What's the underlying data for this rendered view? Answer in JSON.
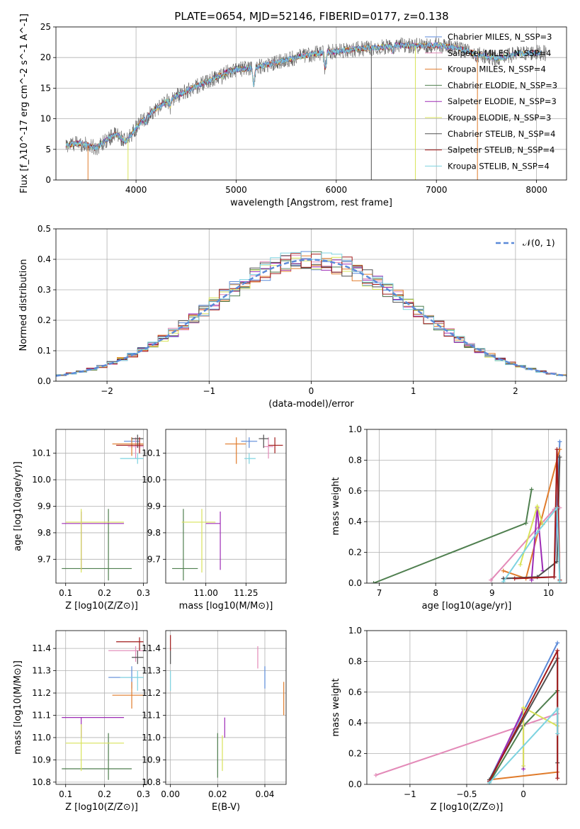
{
  "figure_title": "PLATE=0654, MJD=52146, FIBERID=0177, z=0.138",
  "colors": {
    "chabrier_miles": "#5b8ad8",
    "salpeter_miles": "#e38ab8",
    "kroupa_miles": "#e07b2b",
    "chabrier_elodie": "#4f7f4f",
    "salpeter_elodie": "#9d2bb5",
    "kroupa_elodie": "#d8e35a",
    "chabrier_stelib": "#505050",
    "salpeter_stelib": "#a11a1a",
    "kroupa_stelib": "#7dd3e0"
  },
  "chart_data": [
    {
      "id": "spectrum",
      "type": "line",
      "xlabel": "wavelength [Angstrom, rest frame]",
      "ylabel": "Flux [f_λ10^-17 erg cm^-2 s^-1 A^-1]",
      "xlim": [
        3200,
        8300
      ],
      "ylim": [
        0,
        25
      ],
      "xticks": [
        4000,
        5000,
        6000,
        7000,
        8000
      ],
      "yticks": [
        0,
        5,
        10,
        15,
        20,
        25
      ],
      "legend_position": "right",
      "legend": [
        {
          "label": "Chabrier MILES, N_SSP=3",
          "color_key": "chabrier_miles"
        },
        {
          "label": "Salpeter MILES, N_SSP=4",
          "color_key": "salpeter_miles"
        },
        {
          "label": "Kroupa MILES, N_SSP=4",
          "color_key": "kroupa_miles"
        },
        {
          "label": "Chabrier ELODIE, N_SSP=3",
          "color_key": "chabrier_elodie"
        },
        {
          "label": "Salpeter ELODIE, N_SSP=3",
          "color_key": "salpeter_elodie"
        },
        {
          "label": "Kroupa ELODIE, N_SSP=3",
          "color_key": "kroupa_elodie"
        },
        {
          "label": "Chabrier STELIB, N_SSP=4",
          "color_key": "chabrier_stelib"
        },
        {
          "label": "Salpeter STELIB, N_SSP=4",
          "color_key": "salpeter_stelib"
        },
        {
          "label": "Kroupa STELIB, N_SSP=4",
          "color_key": "kroupa_stelib"
        }
      ],
      "continuum": [
        [
          3300,
          5.6
        ],
        [
          3400,
          6.0
        ],
        [
          3500,
          5.8
        ],
        [
          3600,
          5.2
        ],
        [
          3700,
          6.5
        ],
        [
          3800,
          7.5
        ],
        [
          3900,
          6.2
        ],
        [
          3950,
          7.4
        ],
        [
          4050,
          9.5
        ],
        [
          4150,
          11.0
        ],
        [
          4300,
          12.8
        ],
        [
          4500,
          14.5
        ],
        [
          4700,
          16.0
        ],
        [
          4900,
          17.6
        ],
        [
          5000,
          18.0
        ],
        [
          5200,
          18.4
        ],
        [
          5400,
          19.2
        ],
        [
          5600,
          20.0
        ],
        [
          5800,
          20.7
        ],
        [
          6000,
          21.0
        ],
        [
          6200,
          21.4
        ],
        [
          6400,
          21.6
        ],
        [
          6600,
          22.0
        ],
        [
          6800,
          21.9
        ],
        [
          7000,
          22.0
        ],
        [
          7200,
          21.6
        ],
        [
          7400,
          20.6
        ],
        [
          7600,
          19.8
        ],
        [
          7800,
          20.6
        ],
        [
          8000,
          20.8
        ],
        [
          8100,
          20.7
        ]
      ],
      "dips": [
        [
          3934,
          7.2
        ],
        [
          4101,
          9.4
        ],
        [
          4340,
          12.0
        ],
        [
          4861,
          16.9
        ],
        [
          5175,
          15.5
        ],
        [
          5890,
          18.2
        ],
        [
          6563,
          20.9
        ],
        [
          7400,
          19.8
        ]
      ],
      "drops": [
        [
          3520,
          0
        ],
        [
          3920,
          0
        ],
        [
          6350,
          0
        ],
        [
          6790,
          0
        ],
        [
          7410,
          0
        ]
      ]
    },
    {
      "id": "residuals",
      "type": "histogram",
      "xlabel": "(data-model)/error",
      "ylabel": "Normed distribution",
      "xlim": [
        -2.5,
        2.5
      ],
      "ylim": [
        0,
        0.5
      ],
      "xticks": [
        -2,
        -1,
        0,
        1,
        2
      ],
      "yticks": [
        0,
        0.1,
        0.2,
        0.3,
        0.4,
        0.5
      ],
      "legend_position": "top-right",
      "legend": [
        {
          "label": "𝒩(0, 1)",
          "color_key": "chabrier_miles"
        }
      ],
      "bin_width": 0.1,
      "gaussian": {
        "mean": 0,
        "sigma": 1
      }
    },
    {
      "id": "age_vs_Z",
      "type": "scatter",
      "xlabel": "Z [log10(Z/Z⊙)]",
      "ylabel": "age  [log10(age/yr)]",
      "xlim": [
        0.075,
        0.31
      ],
      "ylim": [
        9.61,
        10.19
      ],
      "xticks": [
        0.1,
        0.2,
        0.3
      ],
      "yticks": [
        9.7,
        9.8,
        9.9,
        10.0,
        10.1
      ],
      "points": [
        {
          "key": "chabrier_miles",
          "x": 0.27,
          "y": 10.145,
          "xerr": [
            0.25,
            0.29
          ],
          "yerr": [
            10.12,
            10.16
          ]
        },
        {
          "key": "salpeter_miles",
          "x": 0.28,
          "y": 10.125,
          "xerr": [
            0.26,
            0.3
          ],
          "yerr": [
            10.08,
            10.16
          ]
        },
        {
          "key": "kroupa_miles",
          "x": 0.27,
          "y": 10.135,
          "xerr": [
            0.22,
            0.3
          ],
          "yerr": [
            10.09,
            10.16
          ]
        },
        {
          "key": "chabrier_elodie",
          "x": 0.21,
          "y": 9.665,
          "xerr": [
            0.09,
            0.27
          ],
          "yerr": [
            9.62,
            9.89
          ]
        },
        {
          "key": "salpeter_elodie",
          "x": 0.14,
          "y": 9.835,
          "xerr": [
            0.09,
            0.25
          ],
          "yerr": [
            9.66,
            9.88
          ]
        },
        {
          "key": "kroupa_elodie",
          "x": 0.14,
          "y": 9.84,
          "xerr": [
            0.1,
            0.25
          ],
          "yerr": [
            9.65,
            9.89
          ]
        },
        {
          "key": "chabrier_stelib",
          "x": 0.285,
          "y": 10.155,
          "xerr": [
            0.27,
            0.3
          ],
          "yerr": [
            10.12,
            10.17
          ]
        },
        {
          "key": "salpeter_stelib",
          "x": 0.29,
          "y": 10.13,
          "xerr": [
            0.23,
            0.3
          ],
          "yerr": [
            10.1,
            10.16
          ]
        },
        {
          "key": "kroupa_stelib",
          "x": 0.285,
          "y": 10.08,
          "xerr": [
            0.24,
            0.3
          ],
          "yerr": [
            10.06,
            10.1
          ]
        }
      ]
    },
    {
      "id": "age_vs_mass",
      "type": "scatter",
      "xlabel": "mass [log10(M/M⊙)]",
      "ylabel": "",
      "xlim": [
        10.75,
        11.5
      ],
      "ylim": [
        9.61,
        10.19
      ],
      "xticks": [
        11.0,
        11.25
      ],
      "yticks": [
        9.7,
        9.8,
        9.9,
        10.0,
        10.1
      ],
      "points": [
        {
          "key": "chabrier_miles",
          "x": 11.27,
          "y": 10.145,
          "xerr": [
            11.22,
            11.32
          ],
          "yerr": [
            10.12,
            10.16
          ]
        },
        {
          "key": "salpeter_miles",
          "x": 11.39,
          "y": 10.125,
          "xerr": [
            11.36,
            11.42
          ],
          "yerr": [
            10.08,
            10.16
          ]
        },
        {
          "key": "kroupa_miles",
          "x": 11.19,
          "y": 10.135,
          "xerr": [
            11.12,
            11.25
          ],
          "yerr": [
            10.06,
            10.16
          ]
        },
        {
          "key": "chabrier_elodie",
          "x": 10.86,
          "y": 9.665,
          "xerr": [
            10.79,
            10.95
          ],
          "yerr": [
            9.62,
            9.89
          ]
        },
        {
          "key": "salpeter_elodie",
          "x": 11.09,
          "y": 9.835,
          "xerr": [
            11.0,
            11.09
          ],
          "yerr": [
            9.66,
            9.88
          ]
        },
        {
          "key": "kroupa_elodie",
          "x": 10.975,
          "y": 9.84,
          "xerr": [
            10.85,
            11.06
          ],
          "yerr": [
            9.65,
            9.89
          ]
        },
        {
          "key": "chabrier_stelib",
          "x": 11.36,
          "y": 10.155,
          "xerr": [
            11.33,
            11.39
          ],
          "yerr": [
            10.12,
            10.17
          ]
        },
        {
          "key": "salpeter_stelib",
          "x": 11.43,
          "y": 10.13,
          "xerr": [
            11.39,
            11.48
          ],
          "yerr": [
            10.1,
            10.16
          ]
        },
        {
          "key": "kroupa_stelib",
          "x": 11.27,
          "y": 10.08,
          "xerr": [
            11.24,
            11.31
          ],
          "yerr": [
            10.06,
            10.1
          ]
        }
      ]
    },
    {
      "id": "mass_vs_Z",
      "type": "scatter",
      "xlabel": "Z [log10(Z/Z⊙)]",
      "ylabel": "mass [log10(M/M⊙)]",
      "xlim": [
        0.075,
        0.31
      ],
      "ylim": [
        10.79,
        11.48
      ],
      "xticks": [
        0.1,
        0.2,
        0.3
      ],
      "yticks": [
        10.8,
        10.9,
        11.0,
        11.1,
        11.2,
        11.3,
        11.4
      ],
      "points": [
        {
          "key": "chabrier_miles",
          "x": 0.27,
          "y": 11.27,
          "xerr": [
            0.21,
            0.3
          ],
          "yerr": [
            11.22,
            11.32
          ]
        },
        {
          "key": "salpeter_miles",
          "x": 0.28,
          "y": 11.39,
          "xerr": [
            0.21,
            0.3
          ],
          "yerr": [
            11.34,
            11.41
          ]
        },
        {
          "key": "kroupa_miles",
          "x": 0.27,
          "y": 11.19,
          "xerr": [
            0.22,
            0.3
          ],
          "yerr": [
            11.13,
            11.25
          ]
        },
        {
          "key": "chabrier_elodie",
          "x": 0.21,
          "y": 10.86,
          "xerr": [
            0.09,
            0.27
          ],
          "yerr": [
            10.81,
            11.02
          ]
        },
        {
          "key": "salpeter_elodie",
          "x": 0.14,
          "y": 11.09,
          "xerr": [
            0.09,
            0.25
          ],
          "yerr": [
            11.0,
            11.09
          ]
        },
        {
          "key": "kroupa_elodie",
          "x": 0.14,
          "y": 10.975,
          "xerr": [
            0.1,
            0.25
          ],
          "yerr": [
            10.85,
            11.06
          ]
        },
        {
          "key": "chabrier_stelib",
          "x": 0.285,
          "y": 11.36,
          "xerr": [
            0.27,
            0.3
          ],
          "yerr": [
            11.33,
            11.39
          ]
        },
        {
          "key": "salpeter_stelib",
          "x": 0.29,
          "y": 11.43,
          "xerr": [
            0.23,
            0.3
          ],
          "yerr": [
            11.39,
            11.45
          ]
        },
        {
          "key": "kroupa_stelib",
          "x": 0.285,
          "y": 11.27,
          "xerr": [
            0.24,
            0.3
          ],
          "yerr": [
            11.21,
            11.3
          ]
        }
      ]
    },
    {
      "id": "mass_vs_ebv",
      "type": "scatter",
      "xlabel": "E(B-V)",
      "ylabel": "",
      "xlim": [
        -0.002,
        0.049
      ],
      "ylim": [
        10.79,
        11.48
      ],
      "xticks": [
        0.0,
        0.02,
        0.04
      ],
      "yticks": [
        10.8,
        10.9,
        11.0,
        11.1,
        11.2,
        11.3,
        11.4
      ],
      "points": [
        {
          "key": "chabrier_miles",
          "x": 0.04,
          "y": 11.27,
          "yerr": [
            11.22,
            11.32
          ]
        },
        {
          "key": "salpeter_miles",
          "x": 0.037,
          "y": 11.36,
          "yerr": [
            11.31,
            11.41
          ]
        },
        {
          "key": "kroupa_miles",
          "x": 0.048,
          "y": 11.19,
          "yerr": [
            11.1,
            11.25
          ]
        },
        {
          "key": "chabrier_elodie",
          "x": 0.02,
          "y": 10.92,
          "yerr": [
            10.82,
            11.02
          ]
        },
        {
          "key": "salpeter_elodie",
          "x": 0.023,
          "y": 11.05,
          "yerr": [
            11.0,
            11.09
          ]
        },
        {
          "key": "kroupa_elodie",
          "x": 0.022,
          "y": 10.95,
          "yerr": [
            10.85,
            11.01
          ]
        },
        {
          "key": "chabrier_stelib",
          "x": 0.0,
          "y": 11.36,
          "yerr": [
            11.33,
            11.39
          ]
        },
        {
          "key": "salpeter_stelib",
          "x": 0.0,
          "y": 11.42,
          "yerr": [
            11.39,
            11.46
          ]
        },
        {
          "key": "kroupa_stelib",
          "x": 0.0,
          "y": 11.27,
          "yerr": [
            11.21,
            11.3
          ]
        }
      ]
    },
    {
      "id": "weight_vs_age",
      "type": "line",
      "xlabel": "age  [log10(age/yr)]",
      "ylabel": "mass weight",
      "xlim": [
        6.78,
        10.32
      ],
      "ylim": [
        0,
        1
      ],
      "xticks": [
        7,
        8,
        9,
        10
      ],
      "yticks": [
        0,
        0.2,
        0.4,
        0.6,
        0.8,
        1.0
      ],
      "series": [
        {
          "key": "chabrier_miles",
          "x": [
            9.2,
            10.1,
            10.2
          ],
          "y": [
            0.03,
            0.04,
            0.92
          ]
        },
        {
          "key": "salpeter_miles",
          "x": [
            8.98,
            10.1,
            10.2
          ],
          "y": [
            0.02,
            0.48,
            0.49
          ]
        },
        {
          "key": "kroupa_miles",
          "x": [
            9.2,
            9.6,
            10.2
          ],
          "y": [
            0.08,
            0.03,
            0.87
          ]
        },
        {
          "key": "chabrier_elodie",
          "x": 6.9,
          "y": 0.0,
          "pts": [
            [
              6.9,
              0.0
            ],
            [
              9.6,
              0.39
            ],
            [
              9.7,
              0.61
            ]
          ]
        },
        {
          "key": "salpeter_elodie",
          "x": [
            9.7,
            9.8,
            9.9
          ],
          "y": [
            0.02,
            0.49,
            0.08
          ]
        },
        {
          "key": "kroupa_elodie",
          "x": [
            9.5,
            9.8,
            9.9
          ],
          "y": [
            0.12,
            0.5,
            0.38
          ]
        },
        {
          "key": "chabrier_stelib",
          "x": [
            9.2,
            9.8,
            10.15,
            10.2
          ],
          "y": [
            0.03,
            0.04,
            0.14,
            0.82
          ]
        },
        {
          "key": "salpeter_stelib",
          "x": [
            9.4,
            10.1,
            10.15,
            10.2
          ],
          "y": [
            0.03,
            0.04,
            0.87,
            0.02
          ]
        },
        {
          "key": "kroupa_stelib",
          "x": [
            9.2,
            9.8,
            10.15,
            10.2
          ],
          "y": [
            0.01,
            0.33,
            0.49,
            0.01
          ]
        }
      ]
    },
    {
      "id": "weight_vs_Z",
      "type": "line",
      "xlabel": "Z [log10(Z/Z⊙)]",
      "ylabel": "mass weight",
      "xlim": [
        -1.38,
        0.38
      ],
      "ylim": [
        0,
        1
      ],
      "xticks": [
        -1.0,
        -0.5,
        0.0
      ],
      "yticks": [
        0,
        0.2,
        0.4,
        0.6,
        0.8,
        1.0
      ],
      "series": [
        {
          "key": "chabrier_miles",
          "x": [
            -0.3,
            0.3
          ],
          "y": [
            0.03,
            0.92
          ]
        },
        {
          "key": "salpeter_miles",
          "x": [
            -1.3,
            0.3
          ],
          "y": [
            0.06,
            0.46
          ]
        },
        {
          "key": "kroupa_miles",
          "x": [
            -0.3,
            0.3
          ],
          "y": [
            0.03,
            0.08
          ]
        },
        {
          "key": "chabrier_elodie",
          "x": [
            -0.3,
            0.0,
            0.3
          ],
          "y": [
            0.01,
            0.38,
            0.61
          ]
        },
        {
          "key": "salpeter_elodie",
          "x": [
            -0.3,
            0.0,
            0.0
          ],
          "y": [
            0.02,
            0.49,
            0.1
          ]
        },
        {
          "key": "kroupa_elodie",
          "x": [
            0.0,
            0.0,
            0.3
          ],
          "y": [
            0.12,
            0.5,
            0.38
          ]
        },
        {
          "key": "chabrier_stelib",
          "x": [
            -0.3,
            0.3,
            0.3
          ],
          "y": [
            0.03,
            0.82,
            0.14
          ]
        },
        {
          "key": "salpeter_stelib",
          "x": [
            -0.3,
            0.3,
            0.3
          ],
          "y": [
            0.02,
            0.87,
            0.04
          ]
        },
        {
          "key": "kroupa_stelib",
          "x": [
            -0.3,
            0.3,
            0.3
          ],
          "y": [
            0.01,
            0.49,
            0.33
          ]
        }
      ]
    }
  ]
}
